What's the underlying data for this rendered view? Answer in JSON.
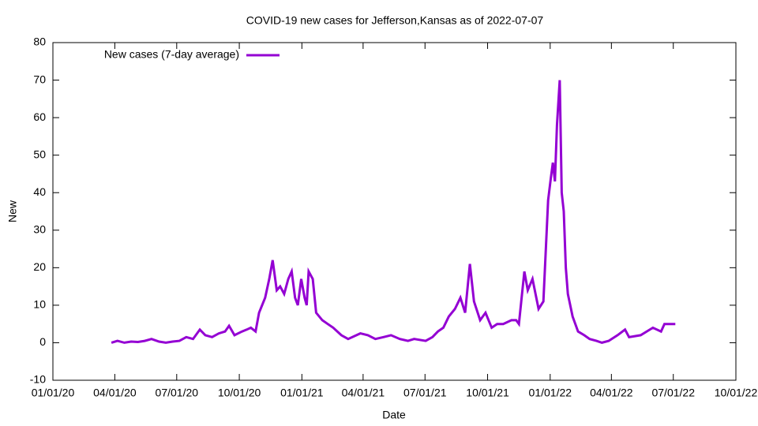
{
  "chart_data": {
    "type": "line",
    "title": "COVID-19 new cases for Jefferson,Kansas as of 2022-07-07",
    "x_label": "Date",
    "y_label": "New",
    "legend": "top-left",
    "x": [
      "2020-03-27",
      "2020-04-05",
      "2020-04-15",
      "2020-04-25",
      "2020-05-05",
      "2020-05-15",
      "2020-05-25",
      "2020-06-05",
      "2020-06-15",
      "2020-06-25",
      "2020-07-05",
      "2020-07-15",
      "2020-07-25",
      "2020-08-04",
      "2020-08-12",
      "2020-08-22",
      "2020-09-01",
      "2020-09-10",
      "2020-09-16",
      "2020-09-24",
      "2020-10-05",
      "2020-10-12",
      "2020-10-18",
      "2020-10-25",
      "2020-10-30",
      "2020-11-08",
      "2020-11-14",
      "2020-11-19",
      "2020-11-25",
      "2020-11-30",
      "2020-12-06",
      "2020-12-12",
      "2020-12-17",
      "2020-12-22",
      "2020-12-26",
      "2020-12-31",
      "2021-01-05",
      "2021-01-08",
      "2021-01-11",
      "2021-01-17",
      "2021-01-22",
      "2021-01-31",
      "2021-02-08",
      "2021-02-16",
      "2021-02-28",
      "2021-03-10",
      "2021-03-28",
      "2021-04-08",
      "2021-04-19",
      "2021-05-01",
      "2021-05-12",
      "2021-05-25",
      "2021-06-06",
      "2021-06-15",
      "2021-07-02",
      "2021-07-12",
      "2021-07-20",
      "2021-07-28",
      "2021-08-05",
      "2021-08-14",
      "2021-08-22",
      "2021-08-29",
      "2021-09-05",
      "2021-09-11",
      "2021-09-20",
      "2021-09-28",
      "2021-10-07",
      "2021-10-15",
      "2021-10-24",
      "2021-11-05",
      "2021-11-12",
      "2021-11-16",
      "2021-11-24",
      "2021-11-29",
      "2021-12-06",
      "2021-12-15",
      "2021-12-22",
      "2021-12-29",
      "2022-01-02",
      "2022-01-05",
      "2022-01-08",
      "2022-01-11",
      "2022-01-15",
      "2022-01-18",
      "2022-01-21",
      "2022-01-24",
      "2022-01-27",
      "2022-02-03",
      "2022-02-11",
      "2022-02-20",
      "2022-02-28",
      "2022-03-10",
      "2022-03-18",
      "2022-03-28",
      "2022-04-10",
      "2022-04-21",
      "2022-04-27",
      "2022-05-14",
      "2022-06-01",
      "2022-06-13",
      "2022-06-18",
      "2022-06-26",
      "2022-07-04"
    ],
    "series": [
      {
        "name": "New cases (7-day average)",
        "color": "#9400d3",
        "values": [
          0,
          0.5,
          0,
          0.3,
          0.2,
          0.5,
          1,
          0.3,
          0,
          0.3,
          0.5,
          1.5,
          1,
          3.5,
          2,
          1.5,
          2.5,
          3,
          4.5,
          2,
          3,
          3.5,
          4,
          3,
          8,
          12,
          17,
          22,
          14,
          15,
          13,
          17,
          19,
          12,
          10,
          17,
          12,
          10,
          19,
          17,
          8,
          6,
          5,
          4,
          2,
          1,
          2.5,
          2,
          1,
          1.5,
          2,
          1,
          0.5,
          1,
          0.5,
          1.5,
          3,
          4,
          7,
          9,
          12,
          8,
          21,
          11,
          6,
          8,
          4,
          5,
          5,
          6,
          6,
          5,
          19,
          14,
          17,
          9,
          11,
          38,
          44,
          48,
          43,
          58,
          70,
          40,
          35,
          20,
          13,
          7,
          3,
          2,
          1,
          0.5,
          0,
          0.5,
          2,
          3.5,
          1.5,
          2,
          4,
          3,
          5,
          5,
          5
        ]
      }
    ],
    "xlim": [
      "2020-01-01",
      "2022-10-01"
    ],
    "xticks": [
      {
        "value": "2020-01-01",
        "label": "01/01/20"
      },
      {
        "value": "2020-04-01",
        "label": "04/01/20"
      },
      {
        "value": "2020-07-01",
        "label": "07/01/20"
      },
      {
        "value": "2020-10-01",
        "label": "10/01/20"
      },
      {
        "value": "2021-01-01",
        "label": "01/01/21"
      },
      {
        "value": "2021-04-01",
        "label": "04/01/21"
      },
      {
        "value": "2021-07-01",
        "label": "07/01/21"
      },
      {
        "value": "2021-10-01",
        "label": "10/01/21"
      },
      {
        "value": "2022-01-01",
        "label": "01/01/22"
      },
      {
        "value": "2022-04-01",
        "label": "04/01/22"
      },
      {
        "value": "2022-07-01",
        "label": "07/01/22"
      },
      {
        "value": "2022-10-01",
        "label": "10/01/22"
      }
    ],
    "ylim": [
      -10,
      80
    ],
    "yticks": [
      -10,
      0,
      10,
      20,
      30,
      40,
      50,
      60,
      70,
      80
    ],
    "grid": false
  }
}
